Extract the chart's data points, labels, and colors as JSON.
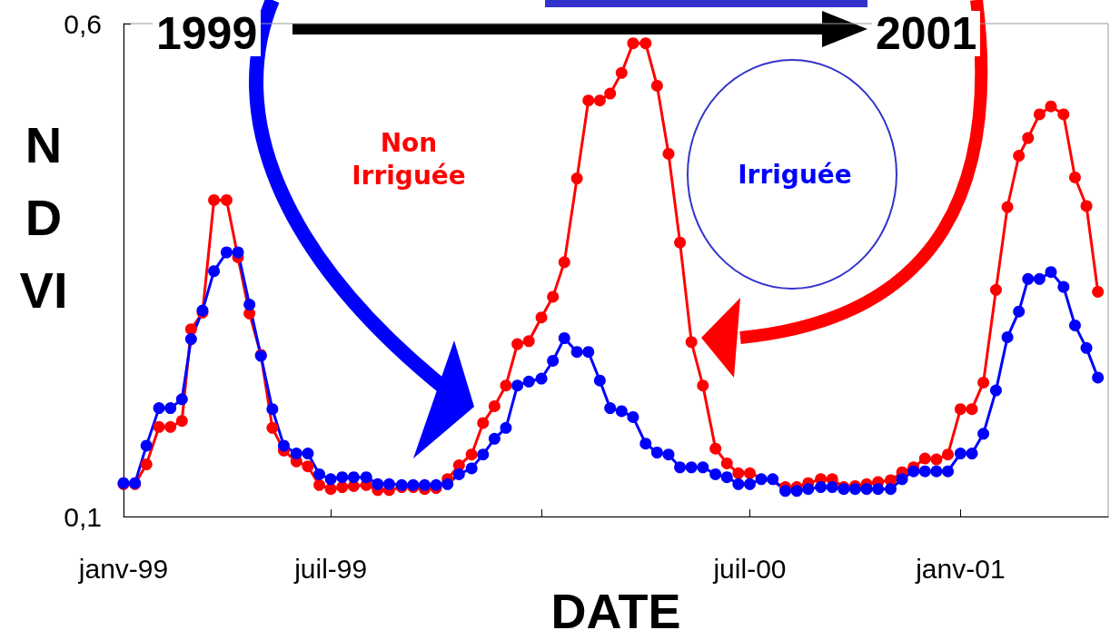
{
  "chart_data": {
    "type": "line",
    "xlabel": "DATE",
    "ylabel": "NDVI",
    "annotations": [
      "1999",
      "2001"
    ],
    "x": [
      "1999-01-01",
      "1999-01-11",
      "1999-01-21",
      "1999-02-01",
      "1999-02-11",
      "1999-02-21",
      "1999-03-01",
      "1999-03-11",
      "1999-03-21",
      "1999-04-01",
      "1999-04-11",
      "1999-04-21",
      "1999-05-01",
      "1999-05-11",
      "1999-05-21",
      "1999-06-01",
      "1999-06-11",
      "1999-06-21",
      "1999-07-01",
      "1999-07-11",
      "1999-07-21",
      "1999-08-01",
      "1999-08-11",
      "1999-08-21",
      "1999-09-01",
      "1999-09-11",
      "1999-09-21",
      "1999-10-01",
      "1999-10-11",
      "1999-10-21",
      "1999-11-01",
      "1999-11-11",
      "1999-11-21",
      "1999-12-01",
      "1999-12-11",
      "1999-12-21",
      "2000-01-01",
      "2000-01-11",
      "2000-01-21",
      "2000-02-01",
      "2000-02-11",
      "2000-02-21",
      "2000-03-01",
      "2000-03-11",
      "2000-03-21",
      "2000-04-01",
      "2000-04-11",
      "2000-04-21",
      "2000-05-01",
      "2000-05-11",
      "2000-05-21",
      "2000-06-01",
      "2000-06-11",
      "2000-06-21",
      "2000-07-01",
      "2000-07-11",
      "2000-07-21",
      "2000-08-01",
      "2000-08-11",
      "2000-08-21",
      "2000-09-01",
      "2000-09-11",
      "2000-09-21",
      "2000-10-01",
      "2000-10-11",
      "2000-10-21",
      "2000-11-01",
      "2000-11-11",
      "2000-11-21",
      "2000-12-01",
      "2000-12-11",
      "2000-12-21",
      "2001-01-01",
      "2001-01-11",
      "2001-01-21",
      "2001-02-01",
      "2001-02-11",
      "2001-02-21",
      "2001-03-01",
      "2001-03-11",
      "2001-03-21",
      "2001-04-01",
      "2001-04-11",
      "2001-04-21",
      "2001-05-01"
    ],
    "series": [
      {
        "name": "Non Irriguée",
        "color": "#ff0000",
        "values": [
          0.133,
          0.133,
          0.153,
          0.191,
          0.191,
          0.197,
          0.29,
          0.307,
          0.421,
          0.421,
          0.363,
          0.306,
          0.264,
          0.19,
          0.167,
          0.156,
          0.151,
          0.132,
          0.128,
          0.13,
          0.131,
          0.132,
          0.127,
          0.127,
          0.13,
          0.13,
          0.128,
          0.129,
          0.138,
          0.152,
          0.163,
          0.195,
          0.212,
          0.233,
          0.275,
          0.278,
          0.302,
          0.323,
          0.358,
          0.443,
          0.522,
          0.522,
          0.529,
          0.55,
          0.58,
          0.58,
          0.537,
          0.468,
          0.378,
          0.277,
          0.233,
          0.169,
          0.154,
          0.144,
          0.144,
          null,
          null,
          0.13,
          0.13,
          0.134,
          0.138,
          0.138,
          0.13,
          0.131,
          0.133,
          0.135,
          0.137,
          0.145,
          0.15,
          0.159,
          0.158,
          0.163,
          0.209,
          0.209,
          0.236,
          0.33,
          0.414,
          0.466,
          0.484,
          0.508,
          0.516,
          0.508,
          0.444,
          0.415,
          0.328
        ]
      },
      {
        "name": "Irriguée",
        "color": "#0000ff",
        "values": [
          0.134,
          0.134,
          0.172,
          0.21,
          0.21,
          0.219,
          0.28,
          0.309,
          0.349,
          0.368,
          0.368,
          0.315,
          0.263,
          0.209,
          0.172,
          0.164,
          0.164,
          0.143,
          0.138,
          0.14,
          0.14,
          0.14,
          0.133,
          0.133,
          0.132,
          0.132,
          0.132,
          0.132,
          0.133,
          0.143,
          0.149,
          0.163,
          0.179,
          0.19,
          0.233,
          0.237,
          0.24,
          0.258,
          0.281,
          0.267,
          0.267,
          0.238,
          0.21,
          0.207,
          0.201,
          0.174,
          0.165,
          0.163,
          0.15,
          0.15,
          0.15,
          0.143,
          0.14,
          0.133,
          0.133,
          0.138,
          0.138,
          0.126,
          0.126,
          0.128,
          0.13,
          0.13,
          0.128,
          0.128,
          0.128,
          0.128,
          0.128,
          0.138,
          0.146,
          0.146,
          0.146,
          0.146,
          0.164,
          0.164,
          0.184,
          0.228,
          0.282,
          0.308,
          0.341,
          0.341,
          0.348,
          0.333,
          0.294,
          0.271,
          0.241
        ]
      }
    ],
    "xlim": [
      "1999-01-01",
      "2001-05-10"
    ],
    "xticks": [
      {
        "value": "1999-01-01",
        "label": "janv-99"
      },
      {
        "value": "1999-07-01",
        "label": "juil-99"
      },
      {
        "value": "2000-01-01",
        "label": null
      },
      {
        "value": "2000-07-01",
        "label": "juil-00"
      },
      {
        "value": "2001-01-01",
        "label": "janv-01"
      }
    ],
    "ylim": [
      0.1,
      0.6
    ],
    "yticks": [
      {
        "value": 0.1,
        "label": "0,1"
      },
      {
        "value": 0.6,
        "label": "0,6"
      }
    ],
    "grid": false,
    "legend": false,
    "marker": "circle",
    "line_style": "solid"
  }
}
